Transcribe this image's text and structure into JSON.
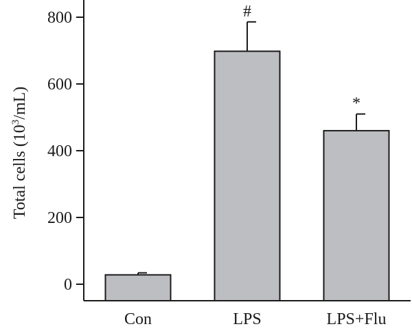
{
  "chart_data": {
    "type": "bar",
    "categories": [
      "Con",
      "LPS",
      "LPS+Flu"
    ],
    "values": [
      28,
      698,
      460
    ],
    "errors": [
      6,
      88,
      50
    ],
    "annotations": [
      "",
      "#",
      "*"
    ],
    "ylabel_prefix": "Total cells (10",
    "ylabel_sup": "3",
    "ylabel_suffix": "/mL)",
    "ylim": [
      -50,
      850
    ],
    "yticks": [
      0,
      200,
      400,
      600,
      800
    ],
    "bar_color": "#bdbec2",
    "edge_color": "#1a1a1a",
    "grid": false
  }
}
